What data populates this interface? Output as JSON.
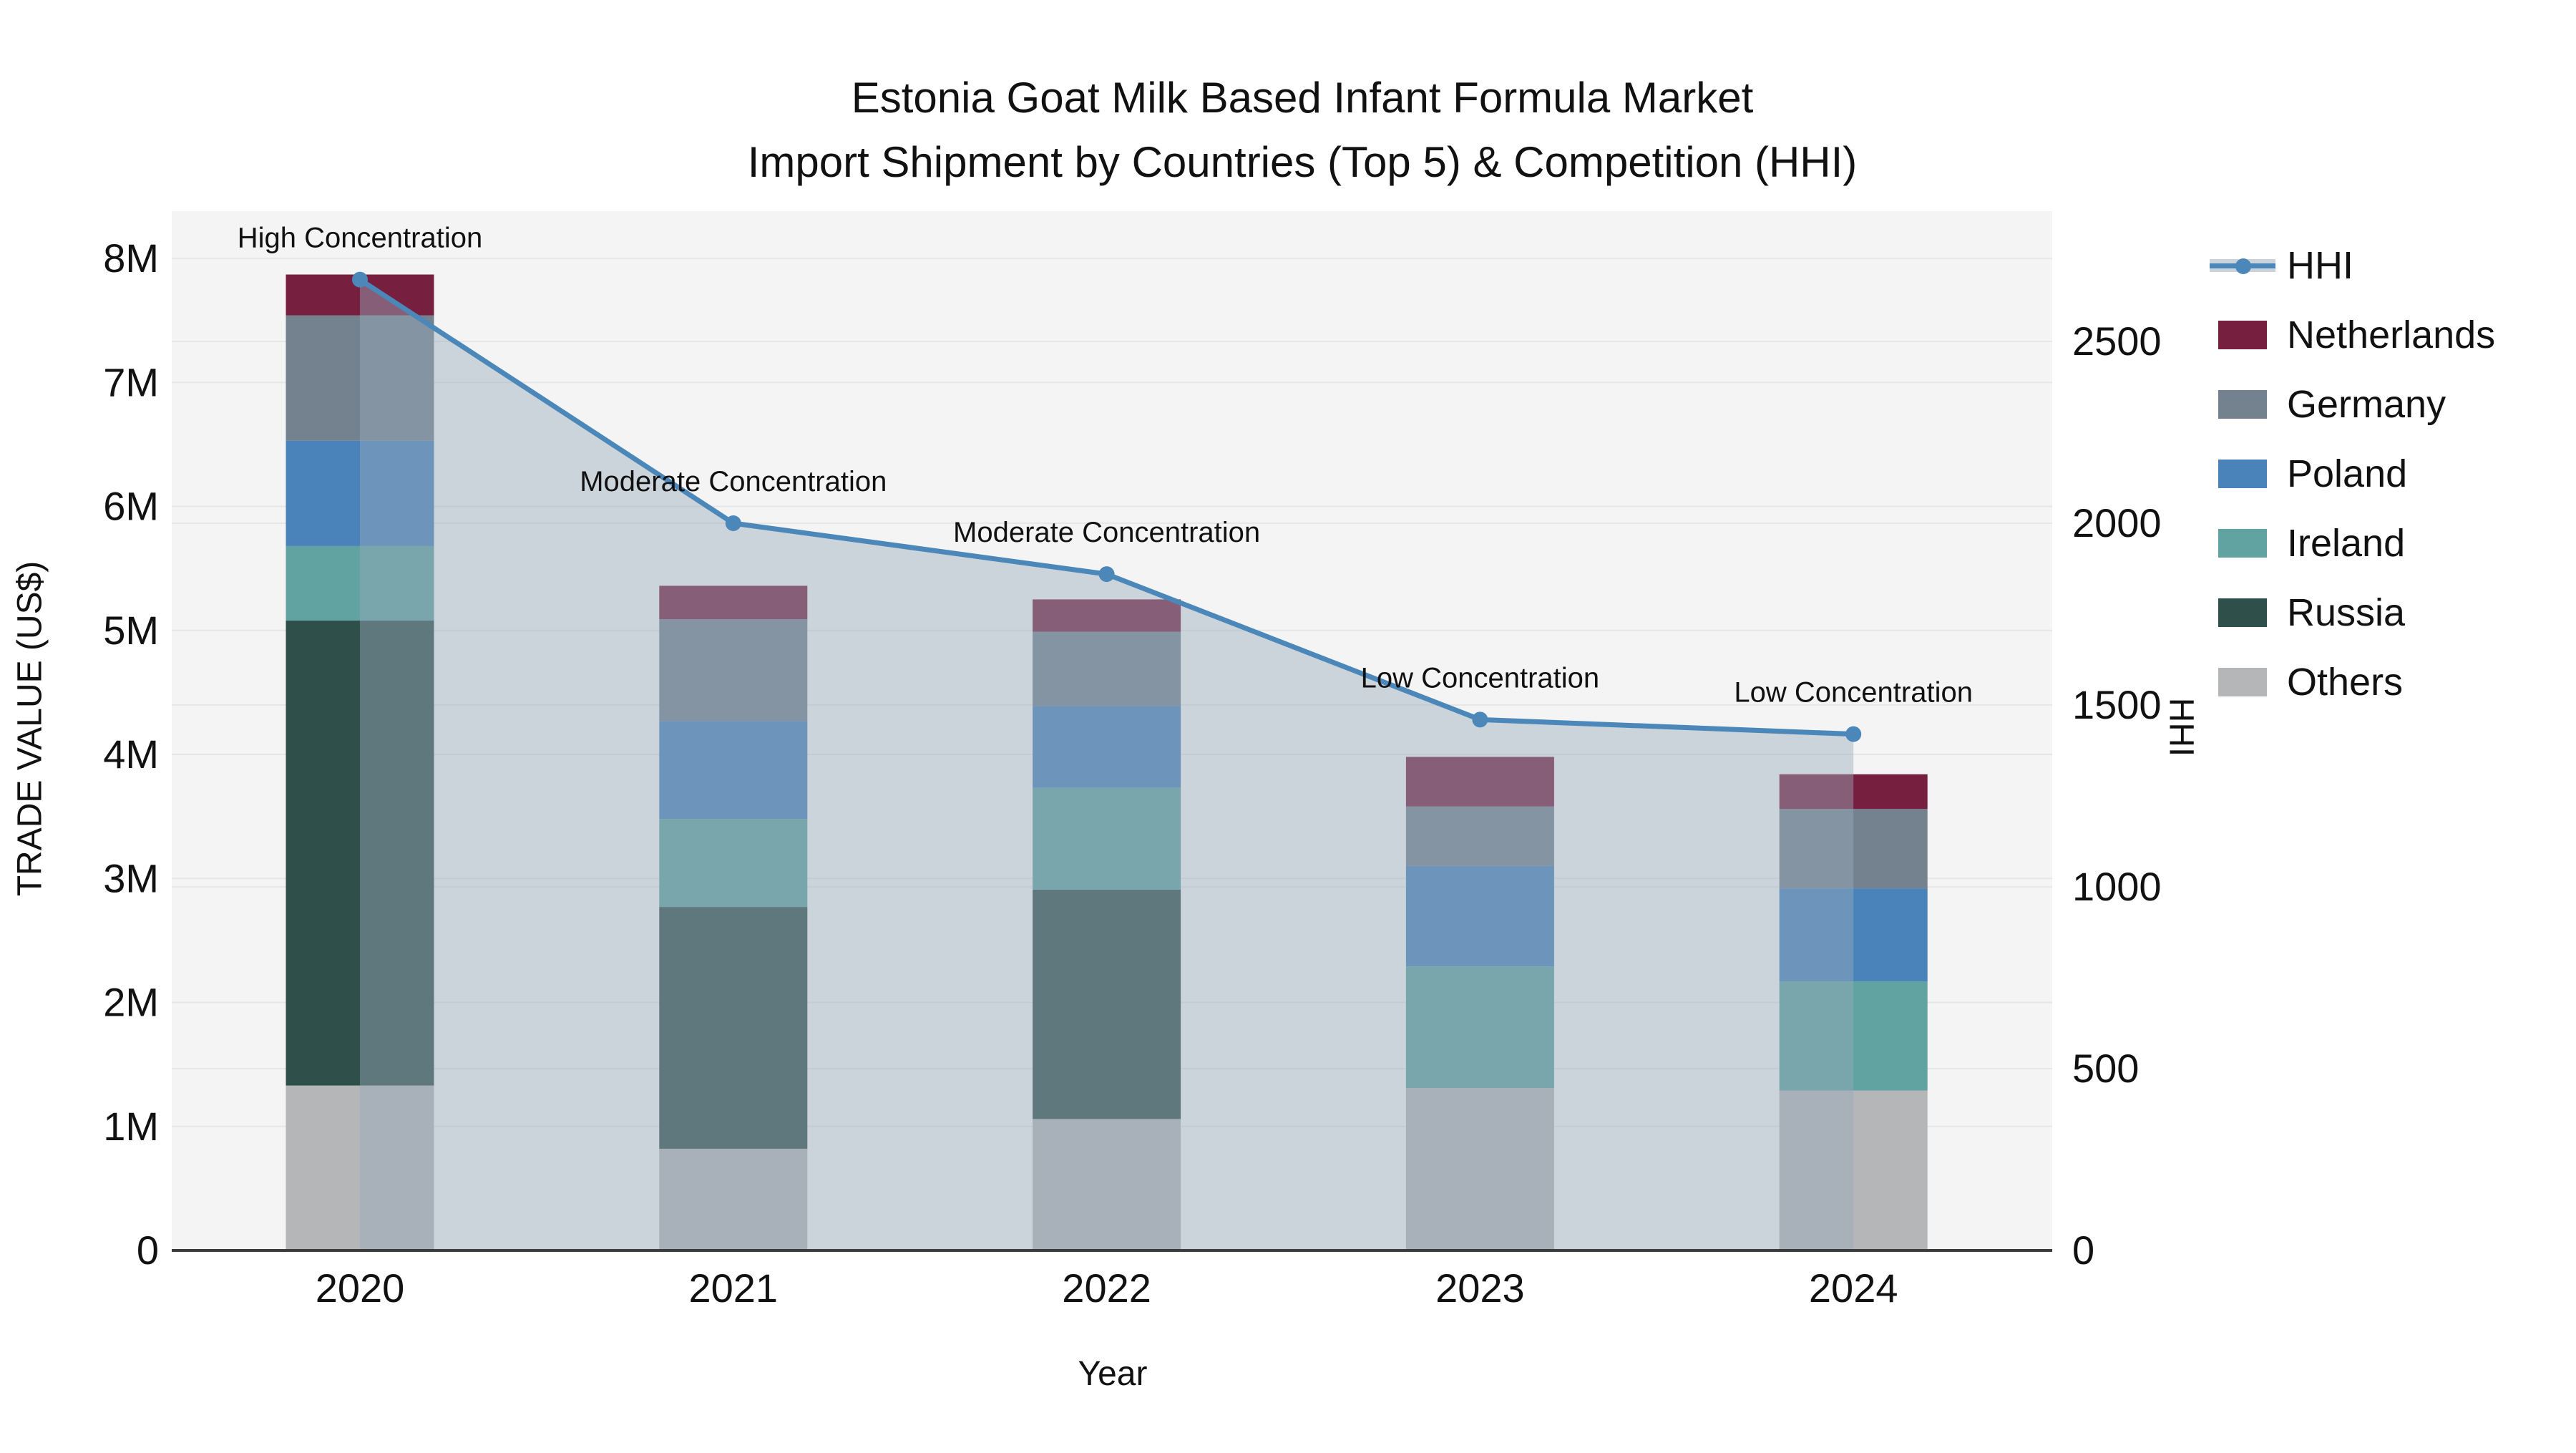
{
  "title": {
    "line1": "Estonia Goat Milk Based Infant Formula Market",
    "line2": "Import Shipment by Countries (Top 5) & Competition (HHI)"
  },
  "axes": {
    "x_label": "Year",
    "y_left_label": "TRADE VALUE (US$)",
    "y_right_label": "HHI"
  },
  "legend": {
    "items": [
      {
        "label": "HHI",
        "type": "line",
        "color": "#4c87b9"
      },
      {
        "label": "Netherlands",
        "type": "patch",
        "color": "#771f3e"
      },
      {
        "label": "Germany",
        "type": "patch",
        "color": "#74818f"
      },
      {
        "label": "Poland",
        "type": "patch",
        "color": "#4a83ba"
      },
      {
        "label": "Ireland",
        "type": "patch",
        "color": "#60a3a1"
      },
      {
        "label": "Russia",
        "type": "patch",
        "color": "#2f4f4a"
      },
      {
        "label": "Others",
        "type": "patch",
        "color": "#b4b6b7"
      }
    ]
  },
  "chart_data": {
    "type": "stacked-bar+line",
    "title": "Estonia Goat Milk Based Infant Formula Market — Import Shipment by Countries (Top 5) & Competition (HHI)",
    "xlabel": "Year",
    "ylabel_left": "TRADE VALUE (US$)",
    "ylabel_right": "HHI",
    "unit_left": "millions of US$",
    "categories": [
      "2020",
      "2021",
      "2022",
      "2023",
      "2024"
    ],
    "stack_order_bottom_to_top": [
      "Others",
      "Russia",
      "Ireland",
      "Poland",
      "Germany",
      "Netherlands"
    ],
    "series": [
      {
        "name": "Netherlands",
        "color": "#771f3e",
        "values": [
          0.33,
          0.27,
          0.26,
          0.4,
          0.28
        ]
      },
      {
        "name": "Germany",
        "color": "#74818f",
        "values": [
          1.01,
          0.82,
          0.6,
          0.48,
          0.64
        ]
      },
      {
        "name": "Poland",
        "color": "#4a83ba",
        "values": [
          0.85,
          0.79,
          0.66,
          0.81,
          0.75
        ]
      },
      {
        "name": "Ireland",
        "color": "#60a3a1",
        "values": [
          0.6,
          0.71,
          0.82,
          0.98,
          0.88
        ]
      },
      {
        "name": "Russia",
        "color": "#2f4f4a",
        "values": [
          3.75,
          1.95,
          1.85,
          0,
          0
        ]
      },
      {
        "name": "Others",
        "color": "#b4b6b7",
        "values": [
          1.33,
          0.82,
          1.06,
          1.31,
          1.29
        ]
      }
    ],
    "line_series": {
      "name": "HHI",
      "color": "#4c87b9",
      "area_fill": "rgba(154,170,188,0.45)",
      "values": [
        2670,
        2000,
        1860,
        1460,
        1420
      ]
    },
    "annotations": [
      "High Concentration",
      "Moderate Concentration",
      "Moderate Concentration",
      "Low Concentration",
      "Low Concentration"
    ],
    "y_left_axis": {
      "ticks": [
        {
          "label": "0",
          "value": 0
        },
        {
          "label": "1M",
          "value": 1
        },
        {
          "label": "2M",
          "value": 2
        },
        {
          "label": "3M",
          "value": 3
        },
        {
          "label": "4M",
          "value": 4
        },
        {
          "label": "5M",
          "value": 5
        },
        {
          "label": "6M",
          "value": 6
        },
        {
          "label": "7M",
          "value": 7
        },
        {
          "label": "8M",
          "value": 8
        }
      ]
    },
    "y_right_axis": {
      "ticks": [
        {
          "label": "0",
          "value": 0
        },
        {
          "label": "500",
          "value": 500
        },
        {
          "label": "1000",
          "value": 1000
        },
        {
          "label": "1500",
          "value": 1500
        },
        {
          "label": "2000",
          "value": 2000
        },
        {
          "label": "2500",
          "value": 2500
        }
      ]
    },
    "layout_hints": {
      "plot_background": "#f4f4f4",
      "gridline_color": "#e6e6e6",
      "axis_line_color": "#3c3c3c",
      "legend_position": "right",
      "grid": true
    }
  }
}
